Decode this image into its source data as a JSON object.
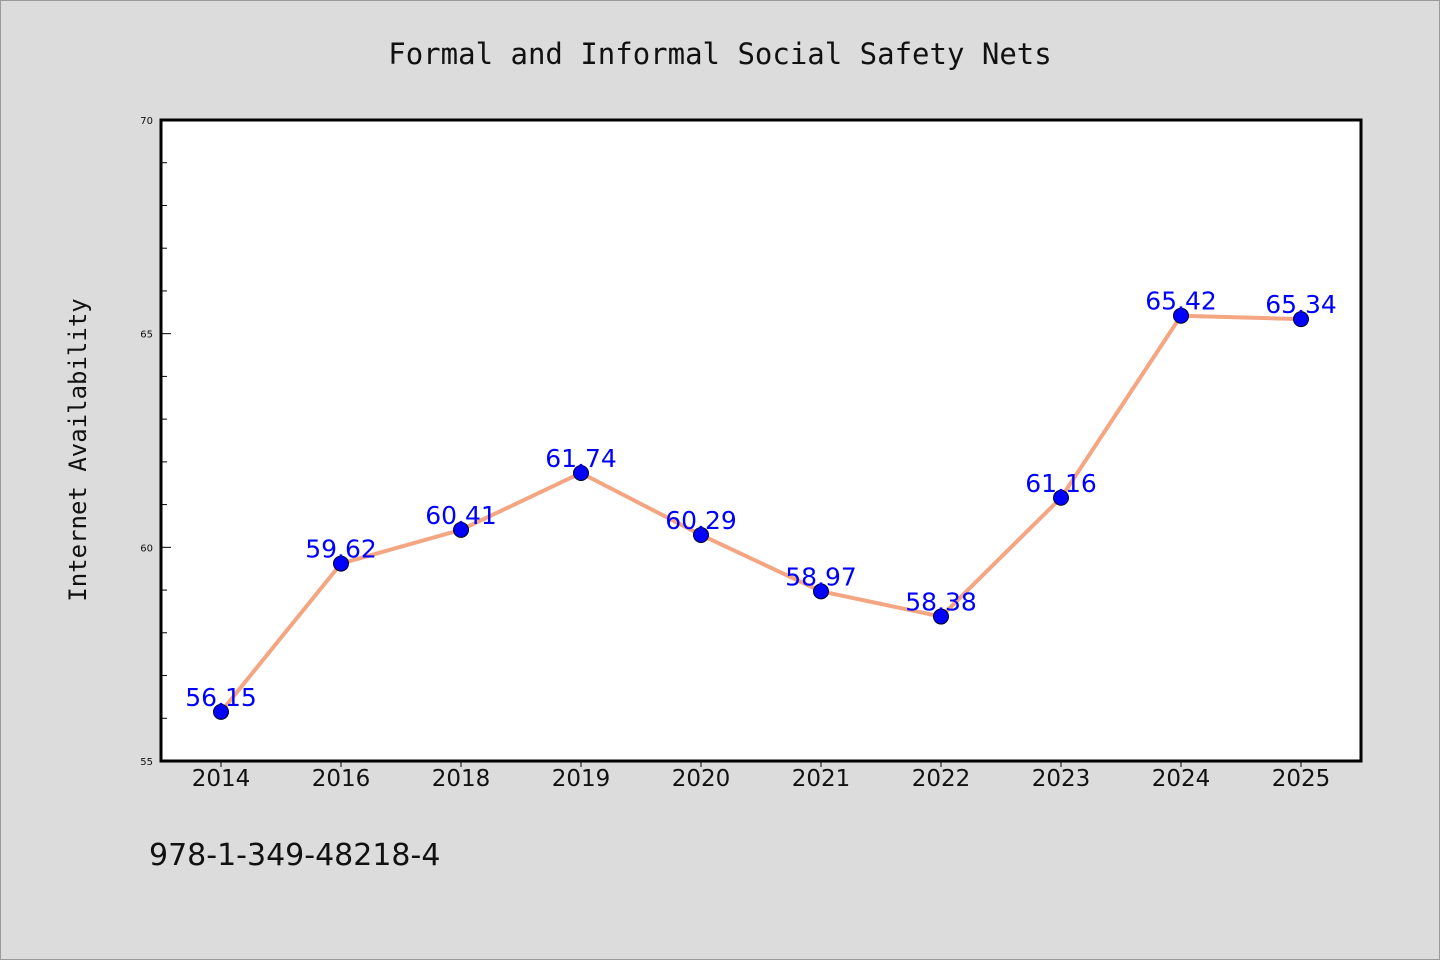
{
  "footer_text": "978-1-349-48218-4",
  "colors": {
    "background": "#dcdcdc",
    "plot_background": "#ffffff",
    "line": "#f4a582",
    "marker": "#0000ff",
    "label": "#0000ff"
  },
  "chart_data": {
    "type": "line",
    "title": "Formal and Informal Social Safety Nets",
    "xlabel": "",
    "ylabel": "Internet Availability",
    "categories": [
      "2014",
      "2016",
      "2018",
      "2019",
      "2020",
      "2021",
      "2022",
      "2023",
      "2024",
      "2025"
    ],
    "series": [
      {
        "values": [
          56.15,
          59.62,
          60.41,
          61.74,
          60.29,
          58.97,
          58.38,
          61.16,
          65.42,
          65.34
        ],
        "data_labels": [
          "56.15",
          "59.62",
          "60.41",
          "61.74",
          "60.29",
          "58.97",
          "58.38",
          "61.16",
          "65.42",
          "65.34"
        ]
      }
    ],
    "ylim": [
      55,
      70
    ],
    "yticks": [
      55,
      60,
      65,
      70
    ],
    "ytick_labels": [
      "55",
      "60",
      "65",
      "70"
    ],
    "y_minor_tick_step": 1,
    "grid": false,
    "legend": "none"
  }
}
